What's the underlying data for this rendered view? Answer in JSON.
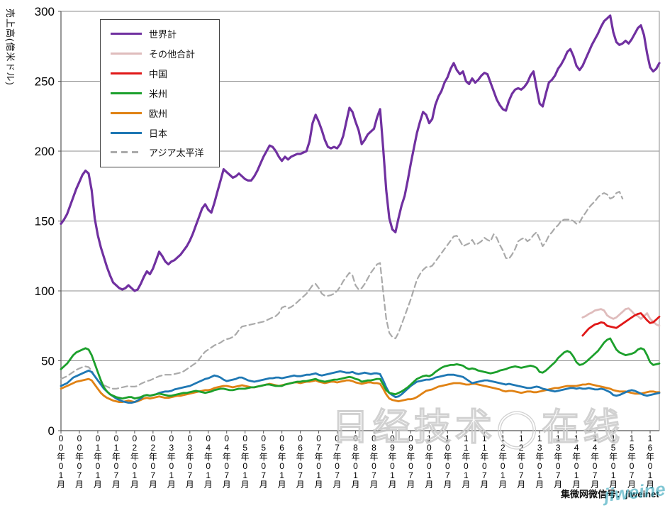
{
  "watermark": {
    "site_text": "日经技术◯在线",
    "signature_text": "集微网微信号：jiweinet",
    "signature_overlay": "jiweinet"
  },
  "legend": [
    {
      "label": "世界計",
      "color": "#7030A0",
      "dashed": false
    },
    {
      "label": "その他合計",
      "color": "#DFBCBC",
      "dashed": false
    },
    {
      "label": "中国",
      "color": "#E01818",
      "dashed": false
    },
    {
      "label": "米州",
      "color": "#1CA02C",
      "dashed": false
    },
    {
      "label": "欧州",
      "color": "#E08214",
      "dashed": false
    },
    {
      "label": "日本",
      "color": "#1F78B4",
      "dashed": false
    },
    {
      "label": "アジア太平洋",
      "color": "#AAAAAA",
      "dashed": true
    }
  ],
  "chart_data": {
    "type": "line",
    "title": "",
    "ylabel": "売上高(億米ドル)",
    "xlabel": "",
    "ylim": [
      0,
      300
    ],
    "yticks": [
      0,
      50,
      100,
      150,
      200,
      250,
      300
    ],
    "grid": true,
    "legend_position": "upper-left-inside",
    "x_start": "2000-01",
    "x_end": "2016-04",
    "x_interval_months": 1,
    "n_points": 196,
    "x_tick_every_months": 6,
    "x_tick_labels": [
      "00年01月",
      "00年07月",
      "01年01月",
      "01年07月",
      "02年01月",
      "02年07月",
      "03年01月",
      "03年07月",
      "04年01月",
      "04年07月",
      "05年01月",
      "05年07月",
      "06年01月",
      "06年07月",
      "07年01月",
      "07年07月",
      "08年01月",
      "08年07月",
      "09年01月",
      "09年07月",
      "10年01月",
      "10年07月",
      "11年01月",
      "11年07月",
      "12年01月",
      "12年07月",
      "13年01月",
      "13年07月",
      "14年01月",
      "14年07月",
      "15年01月",
      "15年07月",
      "16年01月"
    ],
    "series": [
      {
        "name": "アジア太平洋",
        "color": "#AAAAAA",
        "dashed": true,
        "width": 2.2,
        "start_index": 0,
        "values": [
          37,
          38,
          39,
          40.5,
          42,
          43.5,
          44.5,
          45.5,
          46,
          45.5,
          43,
          39,
          36,
          34,
          32.5,
          31.5,
          30.5,
          30,
          30,
          30.5,
          31,
          31.5,
          32,
          31.5,
          31.5,
          32,
          33.5,
          34.5,
          35.5,
          36,
          37,
          38,
          39,
          39.5,
          40,
          40,
          40,
          40.5,
          41,
          41.5,
          42.5,
          44,
          45.5,
          47,
          48.5,
          51,
          54,
          56.5,
          58,
          59.5,
          61,
          62,
          63,
          64.5,
          65.5,
          66,
          67,
          69,
          72,
          74.5,
          75,
          75.5,
          76,
          76.5,
          77,
          77.5,
          78,
          79,
          80,
          81,
          82,
          84,
          88,
          89,
          87.5,
          88.5,
          90,
          92,
          94,
          96,
          98,
          101,
          104,
          105,
          102,
          98,
          96.5,
          96.5,
          97,
          98,
          100,
          103,
          107,
          110,
          113,
          111,
          104,
          101,
          102,
          105,
          109,
          113,
          116,
          119,
          120,
          99,
          80,
          70,
          67,
          66,
          70,
          76,
          82,
          88,
          94,
          101,
          108,
          112,
          115,
          117,
          117,
          118,
          121,
          124,
          127,
          130,
          133,
          136,
          139,
          139.5,
          136,
          132,
          133,
          134,
          136.5,
          133,
          134,
          135.5,
          138,
          136.5,
          135.5,
          140.5,
          138,
          133,
          129,
          123.5,
          123,
          126,
          130,
          135.5,
          137,
          138,
          135.5,
          137,
          140,
          142,
          137,
          132,
          135,
          139.5,
          142,
          145,
          147,
          150,
          151,
          151,
          151,
          150,
          148,
          149,
          153,
          156,
          159.5,
          162,
          164,
          167,
          169,
          170,
          169,
          166,
          167,
          170,
          171,
          166
        ]
      },
      {
        "name": "その他合計",
        "color": "#DFBCBC",
        "dashed": false,
        "width": 2.8,
        "start_index": 170,
        "values": [
          81,
          82,
          83.5,
          84.5,
          86,
          86.5,
          87,
          86,
          82.5,
          81,
          80,
          81,
          83,
          85,
          87,
          87.5,
          85.5,
          83,
          82,
          80,
          82,
          84,
          80,
          78,
          76,
          75
        ]
      },
      {
        "name": "中国",
        "color": "#E01818",
        "dashed": false,
        "width": 2.8,
        "start_index": 170,
        "values": [
          68,
          70.5,
          73,
          74.5,
          76,
          76.5,
          77.5,
          77,
          75,
          74.5,
          74,
          73.5,
          75,
          76.5,
          78,
          79.5,
          81,
          82.5,
          83.5,
          84,
          81.5,
          79,
          77,
          77.5,
          79.5,
          81.5
        ]
      },
      {
        "name": "欧州",
        "color": "#E08214",
        "dashed": false,
        "width": 2.8,
        "start_index": 0,
        "values": [
          30,
          31,
          32,
          33,
          34,
          35,
          35.5,
          36,
          36.5,
          37,
          36,
          33,
          30,
          27,
          25,
          23.5,
          22.5,
          21.5,
          21,
          20.5,
          20.5,
          21,
          21.5,
          21,
          20.5,
          21,
          22,
          23,
          23.5,
          23,
          23.5,
          24,
          24.5,
          24,
          23.5,
          23.5,
          24,
          24.5,
          25,
          25,
          25.5,
          26,
          26.5,
          27,
          27.5,
          28,
          28.5,
          29,
          29,
          29.5,
          30.5,
          31,
          31.5,
          32,
          32,
          31.5,
          31,
          31.5,
          32,
          32.5,
          32,
          31.5,
          31,
          31,
          31.5,
          32,
          32.5,
          33,
          33.5,
          33,
          32.5,
          32,
          32.5,
          33,
          33.5,
          34,
          34.5,
          34.5,
          34,
          34.5,
          35,
          35,
          35.5,
          36,
          35,
          34.5,
          34,
          34.5,
          35,
          35,
          34.5,
          35,
          35.5,
          36,
          36,
          35.5,
          34.5,
          34,
          33.5,
          34,
          34.5,
          34.5,
          34,
          34,
          33.5,
          30,
          26,
          23,
          22,
          21.5,
          21,
          21.5,
          22,
          22.5,
          22.5,
          23,
          24,
          25.5,
          27,
          28.5,
          29,
          29.5,
          30.5,
          31.5,
          32,
          32.5,
          33,
          33.5,
          34,
          34,
          34,
          33.5,
          33,
          33,
          33.5,
          33.5,
          33,
          32.5,
          32,
          31.5,
          31,
          30.5,
          30,
          29.5,
          28.5,
          28,
          28.5,
          28.5,
          28,
          27.5,
          27,
          27.5,
          28,
          28,
          27.5,
          27.5,
          28,
          28.5,
          29,
          29.5,
          30,
          30.5,
          30.5,
          31,
          31.5,
          32,
          32,
          32,
          32,
          32.5,
          33,
          33,
          33.5,
          33,
          32.5,
          32,
          31.5,
          31,
          30.5,
          30,
          29,
          28.5,
          28,
          28,
          28,
          27.5,
          27,
          26.5,
          26.5,
          26.5,
          27,
          27.5,
          28,
          28,
          27.5,
          27.5
        ]
      },
      {
        "name": "日本",
        "color": "#1F78B4",
        "dashed": false,
        "width": 2.8,
        "start_index": 0,
        "values": [
          32,
          33,
          34,
          36,
          38,
          39,
          40,
          41,
          42,
          43,
          42,
          39,
          36,
          33,
          30,
          28,
          26,
          24.5,
          23,
          22,
          21,
          20.5,
          20,
          20,
          20.5,
          21.5,
          23,
          25,
          25.5,
          25,
          25.5,
          26,
          27,
          27.5,
          28,
          28,
          28.5,
          29.5,
          30,
          30.5,
          31,
          31.5,
          32,
          33,
          34,
          35,
          36,
          37,
          37.5,
          38.5,
          39.5,
          39,
          38,
          36.5,
          35.5,
          36,
          36.5,
          37,
          38,
          38,
          37,
          36,
          35.5,
          35,
          35.5,
          36,
          36.5,
          37,
          37.5,
          37.5,
          38,
          38,
          37.5,
          38,
          38.5,
          39,
          39.5,
          39,
          39,
          39.5,
          40,
          40,
          40.5,
          41,
          40,
          39.5,
          40,
          40.5,
          41,
          41.5,
          42,
          42.5,
          42,
          41.5,
          41.5,
          42,
          41,
          40.5,
          41,
          41.5,
          41,
          40.5,
          41,
          41,
          40.5,
          36,
          31,
          27,
          25.5,
          24,
          24.5,
          26,
          28,
          30,
          32,
          33.5,
          35,
          35.5,
          36,
          36.5,
          36.5,
          37,
          38,
          38.5,
          39,
          39.5,
          40,
          40,
          40,
          39.5,
          39,
          38.5,
          37,
          35.5,
          34,
          34.5,
          35,
          35.5,
          36,
          36,
          35.5,
          35,
          34.5,
          34,
          33.5,
          33,
          33.5,
          33,
          32.5,
          32,
          31.5,
          31,
          30.5,
          30.5,
          31,
          31.5,
          31,
          30,
          29.5,
          29,
          28.5,
          28,
          28.5,
          29,
          29.5,
          30,
          30.5,
          30.5,
          30,
          30.5,
          30,
          30,
          30.5,
          30,
          29.5,
          29.5,
          30,
          29.5,
          28.5,
          27.5,
          25.5,
          25,
          25.5,
          26.5,
          27.5,
          28.5,
          29,
          28.5,
          27.5,
          26.5,
          25.5,
          25,
          25.5,
          26,
          26.5,
          27
        ]
      },
      {
        "name": "米州",
        "color": "#1CA02C",
        "dashed": false,
        "width": 2.8,
        "start_index": 0,
        "values": [
          44,
          46,
          48,
          51,
          54,
          56,
          57,
          58,
          59,
          58,
          54,
          48,
          42,
          36,
          31,
          28,
          26,
          25,
          24,
          23.5,
          23,
          23.5,
          24,
          24,
          23,
          23.5,
          24,
          25,
          25.5,
          25,
          25.5,
          26,
          26.5,
          26,
          25.5,
          25,
          25,
          25.5,
          26,
          26.5,
          27,
          27,
          27.5,
          28,
          28.5,
          28,
          27.5,
          27,
          27.5,
          28,
          29,
          29.5,
          30,
          30,
          29.5,
          29,
          29,
          29.5,
          30,
          30,
          30,
          30.5,
          31,
          31,
          31.5,
          32,
          32.5,
          33,
          33,
          32.5,
          32,
          32,
          32,
          33,
          33.5,
          34,
          34.5,
          35,
          35,
          35.5,
          35.5,
          36,
          36.5,
          37,
          36,
          35.5,
          35,
          35.5,
          36,
          36.5,
          36.5,
          37,
          37.5,
          38,
          38.5,
          38,
          37,
          36.5,
          35,
          35.5,
          36,
          36,
          36.5,
          37,
          37,
          33,
          29,
          27,
          26.5,
          26,
          27,
          28,
          29.5,
          31,
          33,
          35,
          37,
          38,
          39,
          39.5,
          39,
          40,
          42,
          43.5,
          45,
          46,
          46.5,
          47,
          47,
          47.5,
          47,
          46.5,
          45,
          44,
          44.5,
          44,
          43,
          42.5,
          42,
          41.5,
          41,
          41.5,
          42,
          43,
          43.5,
          44,
          45,
          45.5,
          46,
          45.5,
          45,
          45.5,
          46,
          46.5,
          46,
          45,
          42,
          41.5,
          43,
          45,
          47,
          49,
          52,
          54,
          56,
          57,
          56,
          53,
          49,
          47,
          47.5,
          49,
          51,
          53,
          55,
          57,
          60,
          63,
          65,
          66,
          62,
          58,
          56,
          55,
          54,
          54.5,
          55,
          56,
          58,
          59,
          58,
          54,
          49,
          47,
          47.5,
          48
        ]
      },
      {
        "name": "世界計",
        "color": "#7030A0",
        "dashed": false,
        "width": 3.2,
        "start_index": 0,
        "values": [
          148,
          151,
          155,
          161,
          167,
          173,
          178,
          183,
          186,
          184,
          172,
          152,
          140,
          131,
          124,
          117,
          111,
          106,
          104,
          102,
          101,
          102,
          104,
          102,
          100,
          101,
          105,
          110,
          114,
          112,
          116,
          122,
          128,
          125,
          121,
          119,
          121,
          122,
          124,
          126,
          129,
          132,
          136,
          141,
          147,
          153,
          159,
          162,
          158,
          156,
          163,
          171,
          179,
          187,
          185,
          183,
          181,
          182,
          184,
          182,
          180,
          179,
          179,
          182,
          186,
          191,
          196,
          200,
          204,
          203,
          200,
          196,
          193,
          196,
          194,
          196,
          197,
          198,
          198,
          199,
          200,
          207,
          220,
          226,
          221,
          215,
          208,
          203,
          202,
          203,
          202,
          205,
          211,
          221,
          231,
          228,
          221,
          215,
          205,
          208,
          212,
          214,
          216,
          224,
          230,
          202,
          172,
          152,
          144,
          142,
          152,
          161,
          168,
          179,
          191,
          202,
          213,
          221,
          228,
          226,
          220,
          223,
          233,
          239,
          243,
          249,
          253,
          259,
          263,
          258,
          255,
          257,
          250,
          248,
          252,
          249,
          251,
          254,
          256,
          255,
          249,
          243,
          237,
          233,
          230,
          229,
          236,
          241,
          244,
          245,
          244,
          246,
          249,
          254,
          257,
          245,
          234,
          232,
          241,
          249,
          251,
          254,
          259,
          262,
          266,
          271,
          273,
          268,
          261,
          258,
          261,
          266,
          271,
          276,
          280,
          284,
          289,
          293,
          295,
          297,
          285,
          278,
          276,
          277,
          279,
          277,
          280,
          284,
          288,
          290,
          283,
          270,
          260,
          257,
          259,
          263
        ]
      }
    ]
  }
}
